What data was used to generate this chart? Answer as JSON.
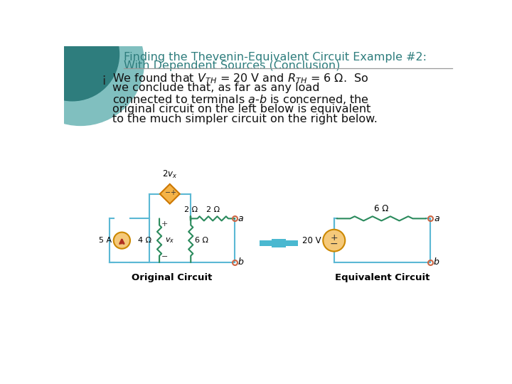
{
  "title_line1": "Finding the Thevenin-Equivalent Circuit Example #2:",
  "title_line2": "With Dependent Sources (Conclusion)",
  "title_color": "#2e7d7d",
  "bg_color": "#ffffff",
  "bullet_text_lines": [
    "We found that $V_{TH}$ = 20 V and $R_{TH}$ = 6 Ω.  So",
    "we conclude that, as far as any load",
    "connected to terminals $a$-$b$ is concerned, the",
    "original circuit on the left below is equivalent",
    "to the much simpler circuit on the right below."
  ],
  "label_original": "Original Circuit",
  "label_equivalent": "Equivalent Circuit",
  "wire_color": "#5bb8d4",
  "resistor_color": "#2a8a5c",
  "current_source_fill": "#f5c97a",
  "current_source_edge": "#cc8800",
  "current_source_arrow": "#b03020",
  "voltage_source_fill": "#f5c97a",
  "voltage_source_edge": "#cc8800",
  "dependent_source_fill": "#f5b347",
  "dependent_source_edge": "#cc7700",
  "terminal_color": "#cc6644",
  "arrow_fill": "#4ab8d0",
  "teal_circle_dark": "#2e7d7d",
  "teal_circle_light": "#80bfbf"
}
